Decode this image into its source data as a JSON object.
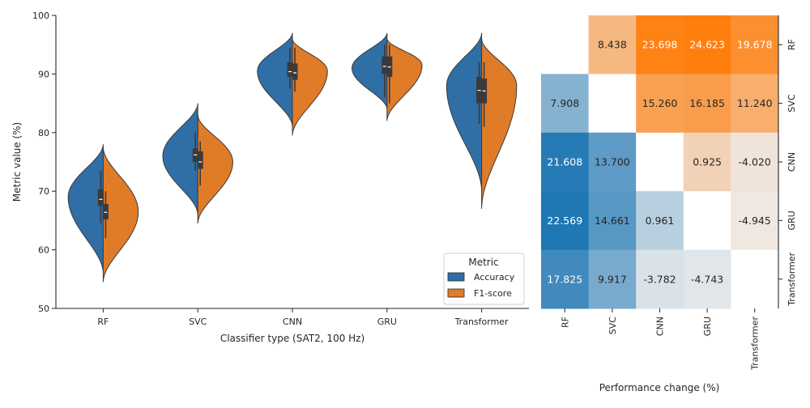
{
  "chart_data": [
    {
      "type": "violin",
      "xlabel": "Classifier type (SAT2, 100 Hz)",
      "ylabel": "Metric value (%)",
      "ylim": [
        50,
        100
      ],
      "yticks": [
        50,
        60,
        70,
        80,
        90,
        100
      ],
      "categories": [
        "RF",
        "SVC",
        "CNN",
        "GRU",
        "Transformer"
      ],
      "legend": {
        "title": "Metric",
        "placement": "lower-right"
      },
      "series": [
        {
          "name": "Accuracy",
          "color": "#2f6fa6",
          "min": [
            56,
            66,
            81,
            84,
            70
          ],
          "max": [
            78,
            85,
            97,
            97,
            97
          ],
          "mode": [
            69,
            76,
            90.5,
            91,
            88
          ],
          "q1": [
            67.5,
            75,
            89.5,
            90,
            85
          ],
          "median": [
            68.6,
            76.2,
            90.4,
            91.3,
            87.2
          ],
          "q3": [
            70.3,
            77.3,
            92,
            93,
            89.5
          ],
          "whisker_low": [
            64.5,
            73.5,
            87.5,
            86,
            81.5
          ],
          "whisker_high": [
            73.5,
            80,
            94.5,
            95,
            92
          ]
        },
        {
          "name": "F1-score",
          "color": "#e07b28",
          "min": [
            54.5,
            64.5,
            79.5,
            82,
            67
          ],
          "max": [
            77.5,
            83,
            96,
            96,
            96
          ],
          "mode": [
            66.5,
            75,
            90.5,
            91.5,
            88
          ],
          "q1": [
            65.2,
            73.8,
            89,
            89.5,
            85
          ],
          "median": [
            66.4,
            75,
            90.2,
            91.2,
            87.1
          ],
          "q3": [
            67.8,
            76.8,
            91.8,
            93,
            89.2
          ],
          "whisker_low": [
            62,
            71,
            87,
            85,
            81
          ],
          "whisker_high": [
            70,
            78.5,
            94.5,
            95,
            92
          ]
        }
      ]
    },
    {
      "type": "heatmap",
      "xlabel": "Performance change (%)",
      "x_categories": [
        "RF",
        "SVC",
        "CNN",
        "GRU",
        "Transformer"
      ],
      "y_categories": [
        "RF",
        "SVC",
        "CNN",
        "GRU",
        "Transformer"
      ],
      "values": [
        [
          null,
          8.438,
          23.698,
          24.623,
          19.678
        ],
        [
          7.908,
          null,
          15.26,
          16.185,
          11.24
        ],
        [
          21.608,
          13.7,
          null,
          0.925,
          -4.02
        ],
        [
          22.569,
          14.661,
          0.961,
          null,
          -4.945
        ],
        [
          17.825,
          9.917,
          -3.782,
          -4.743,
          null
        ]
      ],
      "labels": [
        [
          "",
          "8.438",
          "23.698",
          "24.623",
          "19.678"
        ],
        [
          "7.908",
          "",
          "15.260",
          "16.185",
          "11.240"
        ],
        [
          "21.608",
          "13.700",
          "",
          "0.925",
          "-4.020"
        ],
        [
          "22.569",
          "14.661",
          "0.961",
          "",
          "-4.945"
        ],
        [
          "17.825",
          "9.917",
          "-3.782",
          "-4.743",
          ""
        ]
      ],
      "colormap": {
        "upper": "#ff7f0e",
        "lower": "#1f77b4",
        "upper_vmax": 24.623,
        "lower_vmax": 22.569,
        "neutral": "#eeeeee"
      }
    }
  ]
}
